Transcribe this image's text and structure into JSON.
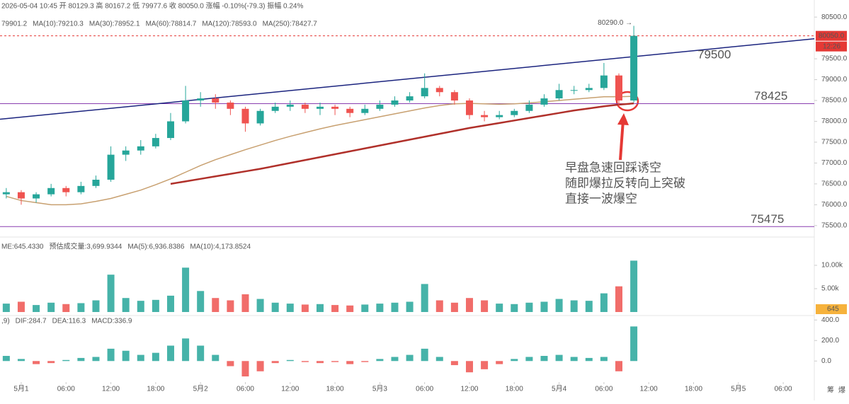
{
  "header": {
    "ohlc": "2026-05-04 10:45 开 80129.3 高 80167.2 低 79977.6 收 80050.0 涨幅 -0.10%(-79.3) 振幅 0.24%",
    "ma_legend": [
      {
        "text": "79901.2",
        "color": "#1a3c8c"
      },
      {
        "text": "MA(10):79210.3",
        "color": "#8b1a2b"
      },
      {
        "text": "MA(30):78952.1",
        "color": "#e07f98"
      },
      {
        "text": "MA(60):78814.7",
        "color": "#22aaa8"
      },
      {
        "text": "MA(120):78593.0",
        "color": "#b8905e"
      },
      {
        "text": "MA(250):78427.7",
        "color": "#a0302a"
      }
    ],
    "corner_icons": [
      "筹",
      "爆"
    ]
  },
  "chart_data": [
    {
      "type": "candlestick",
      "x": [
        -2,
        0,
        2,
        4,
        6,
        8,
        10,
        12,
        14,
        16,
        18,
        20,
        22,
        24,
        26,
        28,
        30,
        32,
        34,
        36,
        38,
        40,
        42,
        44,
        46,
        48,
        50,
        52,
        54,
        56,
        58,
        60,
        62,
        64,
        66,
        68,
        70,
        72,
        74,
        76,
        78,
        80,
        82
      ],
      "open": [
        76250,
        76300,
        76150,
        76250,
        76400,
        76300,
        76450,
        76600,
        77200,
        77300,
        77400,
        77600,
        78000,
        78500,
        78550,
        78450,
        78300,
        77950,
        78250,
        78350,
        78400,
        78300,
        78350,
        78300,
        78200,
        78300,
        78400,
        78500,
        78600,
        78800,
        78700,
        78500,
        78150,
        78100,
        78150,
        78250,
        78400,
        78550,
        78750,
        78750,
        78800,
        79100,
        78500
      ],
      "high": [
        76400,
        76350,
        76300,
        76500,
        76450,
        76550,
        76700,
        77400,
        77400,
        77550,
        77700,
        78200,
        78850,
        78700,
        78650,
        78500,
        78350,
        78300,
        78450,
        78500,
        78450,
        78450,
        78400,
        78350,
        78400,
        78500,
        78600,
        78700,
        79150,
        78850,
        78750,
        78550,
        78250,
        78250,
        78300,
        78500,
        78650,
        78900,
        78850,
        78900,
        79400,
        79150,
        80290
      ],
      "low": [
        76150,
        76000,
        76050,
        76200,
        76200,
        76250,
        76400,
        76550,
        77050,
        77200,
        77350,
        77550,
        77950,
        78350,
        78300,
        78150,
        77750,
        77900,
        78200,
        78250,
        78200,
        78150,
        78150,
        78100,
        78150,
        78250,
        78350,
        78450,
        78550,
        78600,
        78400,
        78050,
        78000,
        78050,
        78100,
        78200,
        78350,
        78500,
        78650,
        78700,
        78750,
        78350,
        78450
      ],
      "close": [
        76300,
        76150,
        76250,
        76400,
        76300,
        76450,
        76600,
        77200,
        77300,
        77400,
        77600,
        78000,
        78500,
        78550,
        78450,
        78300,
        77950,
        78250,
        78350,
        78400,
        78300,
        78350,
        78300,
        78200,
        78300,
        78400,
        78500,
        78600,
        78800,
        78700,
        78500,
        78150,
        78100,
        78150,
        78250,
        78400,
        78550,
        78750,
        78750,
        78800,
        79100,
        78500,
        80050
      ],
      "up_color": "#26a69a",
      "down_color": "#ef5350",
      "lines": [
        {
          "color": "#c8a070",
          "width": 1.5,
          "values": [
            76200,
            76100,
            76050,
            76000,
            76000,
            76020,
            76080,
            76150,
            76250,
            76350,
            76480,
            76620,
            76780,
            76940,
            77080,
            77200,
            77320,
            77430,
            77540,
            77640,
            77730,
            77820,
            77900,
            77970,
            78040,
            78110,
            78180,
            78250,
            78320,
            78380,
            78420,
            78430,
            78420,
            78410,
            78420,
            78440,
            78470,
            78500,
            78530,
            78560,
            78590,
            78590,
            78600
          ]
        },
        {
          "color": "#b0302a",
          "width": 2.5,
          "values": [
            null,
            null,
            null,
            null,
            null,
            null,
            null,
            null,
            null,
            null,
            null,
            76500,
            76560,
            76620,
            76680,
            76740,
            76800,
            76860,
            76930,
            77000,
            77070,
            77140,
            77210,
            77280,
            77350,
            77420,
            77490,
            77560,
            77630,
            77700,
            77770,
            77840,
            77900,
            77960,
            78020,
            78080,
            78140,
            78200,
            78260,
            78310,
            78360,
            78400,
            78430
          ]
        }
      ],
      "levels": [
        {
          "value": 78425,
          "label": "78425",
          "color": "#8a3fb0",
          "label_color": "#e05050"
        },
        {
          "value": 75475,
          "label": "75475",
          "color": "#8a3fb0",
          "label_color": "#333333"
        }
      ],
      "trendline": {
        "x": [
          -2.84,
          106.16
        ],
        "y": [
          78050,
          79980
        ],
        "color": "#1a237e",
        "label": "79500",
        "label_color": "#e05050"
      },
      "last_price": {
        "value": 80050,
        "label": "80050.0",
        "countdown": "12:26",
        "color": "#e53935"
      },
      "high_marker": "80290.0 →",
      "annotation": [
        "早盘急速回踩诱空",
        "随即爆拉反转向上突破",
        "直接一波爆空"
      ],
      "xlim": [
        -2.84,
        106.16
      ],
      "xticks": [
        {
          "value": 0,
          "label": "5月1"
        },
        {
          "value": 6,
          "label": "06:00"
        },
        {
          "value": 12,
          "label": "12:00"
        },
        {
          "value": 18,
          "label": "18:00"
        },
        {
          "value": 24,
          "label": "5月2"
        },
        {
          "value": 30,
          "label": "06:00"
        },
        {
          "value": 36,
          "label": "12:00"
        },
        {
          "value": 42,
          "label": "18:00"
        },
        {
          "value": 48,
          "label": "5月3"
        },
        {
          "value": 54,
          "label": "06:00"
        },
        {
          "value": 60,
          "label": "12:00"
        },
        {
          "value": 66,
          "label": "18:00"
        },
        {
          "value": 72,
          "label": "5月4"
        },
        {
          "value": 78,
          "label": "06:00"
        },
        {
          "value": 84,
          "label": "12:00"
        },
        {
          "value": 90,
          "label": "18:00"
        },
        {
          "value": 96,
          "label": "5月5"
        },
        {
          "value": 102,
          "label": "06:00"
        }
      ],
      "ylim": [
        75310,
        80910
      ],
      "yticks": [
        {
          "value": 75500,
          "label": "75500.0"
        },
        {
          "value": 76000,
          "label": "76000.0"
        },
        {
          "value": 76500,
          "label": "76500.0"
        },
        {
          "value": 77000,
          "label": "77000.0"
        },
        {
          "value": 77500,
          "label": "77500.0"
        },
        {
          "value": 78000,
          "label": "78000.0"
        },
        {
          "value": 78500,
          "label": "78500.0"
        },
        {
          "value": 79000,
          "label": "79000.0"
        },
        {
          "value": 79500,
          "label": "79500.0"
        },
        {
          "value": 80500,
          "label": "80500.0"
        }
      ]
    },
    {
      "type": "bar",
      "legend": [
        {
          "text": "ME:645.4330",
          "color": "#777777"
        },
        {
          "text": "预估成交量:3,699.9344",
          "color": "#777777"
        },
        {
          "text": "MA(5):6,936.8386",
          "color": "#26a69a"
        },
        {
          "text": "MA(10):4,173.8524",
          "color": "#f0a030"
        }
      ],
      "values": [
        1800,
        2200,
        1500,
        2000,
        1700,
        1900,
        2500,
        8000,
        3000,
        2400,
        2600,
        3500,
        9500,
        4500,
        3000,
        2500,
        3800,
        2800,
        2000,
        1800,
        1600,
        1700,
        1500,
        1400,
        1600,
        1800,
        2000,
        2200,
        6000,
        2500,
        2000,
        3000,
        2500,
        1800,
        1700,
        2000,
        2200,
        2800,
        2500,
        2400,
        4000,
        5500,
        11000
      ],
      "current": "645",
      "current_color": "#f6b23c",
      "ylim": [
        0,
        15300
      ],
      "yticks": [
        {
          "value": 5000,
          "label": "5.00k"
        },
        {
          "value": 10000,
          "label": "10.00k"
        }
      ]
    },
    {
      "type": "bar",
      "legend": [
        {
          "text": ",9)",
          "color": "#777777"
        },
        {
          "text": "DIF:284.7",
          "color": "#26a69a"
        },
        {
          "text": "DEA:116.3",
          "color": "#f0a030"
        },
        {
          "text": "MACD:336.9",
          "color": "#e0608a"
        }
      ],
      "values": [
        50,
        20,
        -30,
        -20,
        10,
        30,
        40,
        120,
        100,
        60,
        80,
        150,
        220,
        150,
        60,
        -50,
        -150,
        -100,
        -20,
        10,
        -10,
        -20,
        -10,
        -30,
        -10,
        20,
        40,
        60,
        120,
        40,
        -40,
        -110,
        -80,
        -30,
        20,
        40,
        50,
        60,
        40,
        30,
        40,
        -100,
        336.9
      ],
      "up_color": "#26a69a",
      "down_color": "#ef5350",
      "ylim": [
        -205,
        450
      ],
      "yticks": [
        {
          "value": 0,
          "label": "0.0"
        },
        {
          "value": 200,
          "label": "200.0"
        },
        {
          "value": 400,
          "label": "400.0"
        }
      ]
    }
  ]
}
